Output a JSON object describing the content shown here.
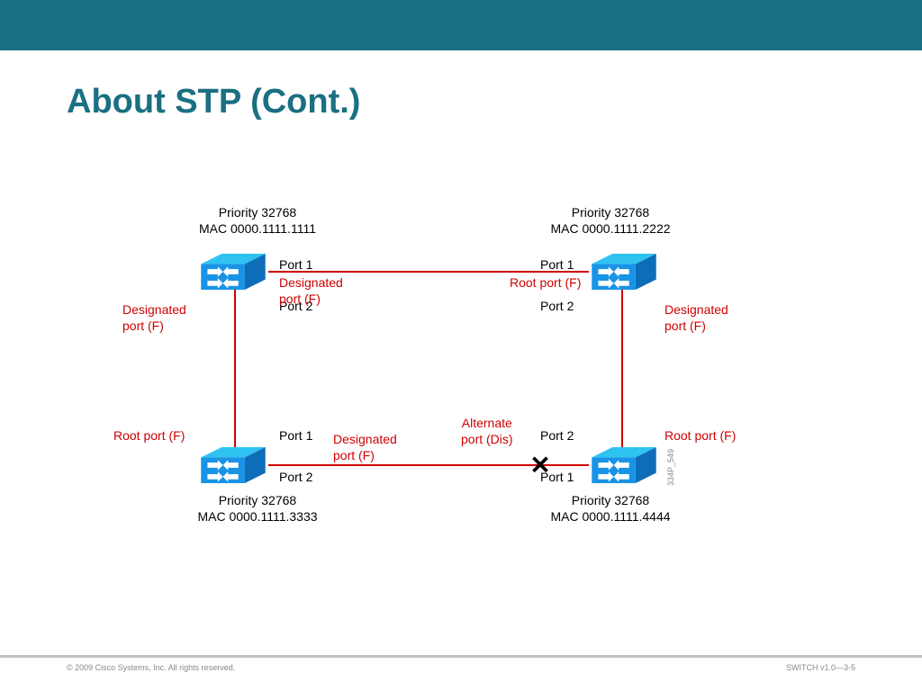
{
  "layout": {
    "banner_bg": "#1a6f82",
    "title_color": "#1a6f82",
    "link_color": "#d00000",
    "text_color": "#000000",
    "red_text_color": "#d00000",
    "switch_fill": "#1993e6",
    "switch_top": "#2fc3f2",
    "switch_side": "#0e6db8",
    "label_fontsize": 14,
    "title_fontsize": 38
  },
  "title": "About STP (Cont.)",
  "switches": {
    "tl": {
      "priority": "Priority 32768",
      "mac": "MAC 0000.1111.1111"
    },
    "tr": {
      "priority": "Priority 32768",
      "mac": "MAC 0000.1111.2222"
    },
    "bl": {
      "priority": "Priority 32768",
      "mac": "MAC 0000.1111.3333"
    },
    "br": {
      "priority": "Priority 32768",
      "mac": "MAC 0000.1111.4444"
    }
  },
  "ports": {
    "tl_p1": "Port 1",
    "tl_p2": "Port 2",
    "tr_p1": "Port 1",
    "tr_p2": "Port 2",
    "bl_p1": "Port 1",
    "bl_p2": "Port 2",
    "br_p1": "Port 1",
    "br_p2": "Port 2"
  },
  "roles": {
    "tl_right": "Designated\nport (F)",
    "tl_down": "Designated\nport (F)",
    "tr_left": "Root port (F)",
    "tr_down": "Designated\nport (F)",
    "bl_up": "Root port (F)",
    "bl_right": "Designated\nport (F)",
    "br_up": "Root port (F)",
    "br_left": "Alternate\nport (Dis)"
  },
  "footer": {
    "copyright": "© 2009 Cisco Systems, Inc. All rights reserved.",
    "version": "SWITCH v1.0—3-5"
  },
  "image_id": "334P_549"
}
